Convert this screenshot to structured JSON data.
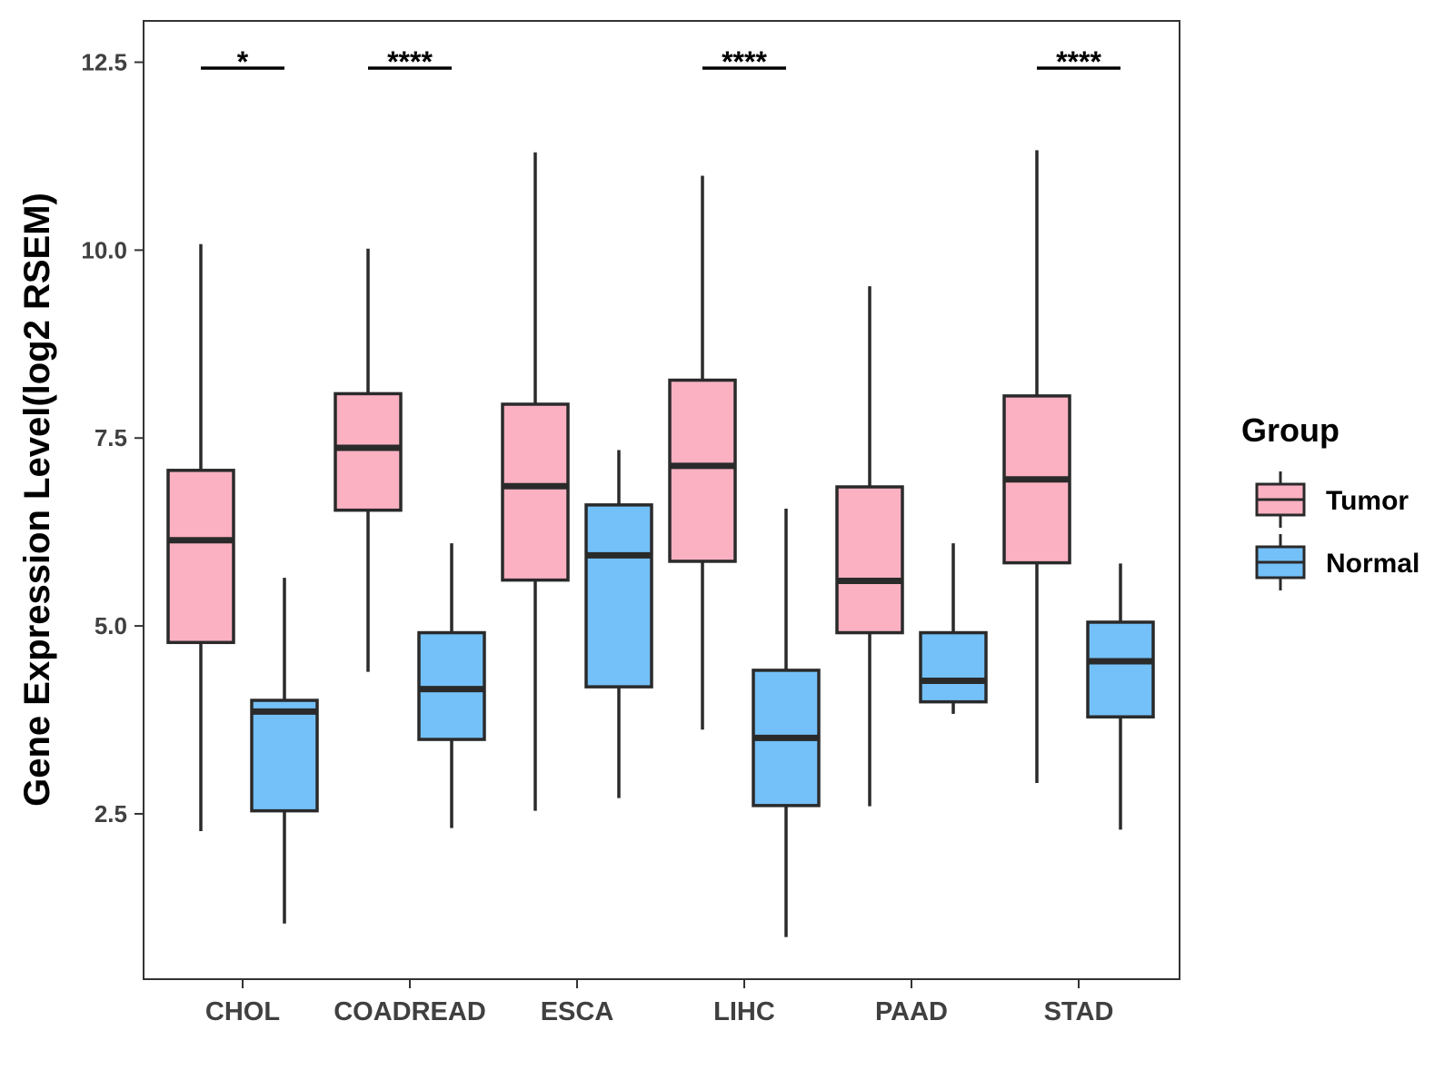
{
  "chart_data": {
    "type": "boxplot",
    "title": "",
    "xlabel": "",
    "ylabel": "Gene Expression Level(log2 RSEM)",
    "ylim": [
      0.3,
      13.05
    ],
    "y_ticks": [
      {
        "value": 2.5,
        "label": "2.5"
      },
      {
        "value": 5.0,
        "label": "5.0"
      },
      {
        "value": 7.5,
        "label": "7.5"
      },
      {
        "value": 10.0,
        "label": "10.0"
      },
      {
        "value": 12.5,
        "label": "12.5"
      }
    ],
    "categories": [
      "CHOL",
      "COADREAD",
      "ESCA",
      "LIHC",
      "PAAD",
      "STAD"
    ],
    "legend": {
      "title": "Group",
      "position": "right",
      "entries": [
        {
          "name": "Tumor",
          "color": "#FBB1C2"
        },
        {
          "name": "Normal",
          "color": "#74C0F8"
        }
      ]
    },
    "series": [
      {
        "name": "Tumor",
        "color": "#FBB1C2",
        "boxes": [
          {
            "category": "CHOL",
            "min": 2.27,
            "q1": 4.78,
            "median": 6.14,
            "q3": 7.07,
            "max": 10.08
          },
          {
            "category": "COADREAD",
            "min": 4.39,
            "q1": 6.54,
            "median": 7.37,
            "q3": 8.09,
            "max": 10.02
          },
          {
            "category": "ESCA",
            "min": 2.54,
            "q1": 5.61,
            "median": 6.86,
            "q3": 7.95,
            "max": 11.3
          },
          {
            "category": "LIHC",
            "min": 3.62,
            "q1": 5.86,
            "median": 7.13,
            "q3": 8.27,
            "max": 10.99
          },
          {
            "category": "PAAD",
            "min": 2.6,
            "q1": 4.91,
            "median": 5.6,
            "q3": 6.85,
            "max": 9.52
          },
          {
            "category": "STAD",
            "min": 2.91,
            "q1": 5.84,
            "median": 6.95,
            "q3": 8.06,
            "max": 11.33
          }
        ]
      },
      {
        "name": "Normal",
        "color": "#74C0F8",
        "boxes": [
          {
            "category": "CHOL",
            "min": 1.04,
            "q1": 2.54,
            "median": 3.86,
            "q3": 4.01,
            "max": 5.64
          },
          {
            "category": "COADREAD",
            "min": 2.31,
            "q1": 3.49,
            "median": 4.16,
            "q3": 4.91,
            "max": 6.1
          },
          {
            "category": "ESCA",
            "min": 2.71,
            "q1": 4.19,
            "median": 5.94,
            "q3": 6.61,
            "max": 7.34
          },
          {
            "category": "LIHC",
            "min": 0.86,
            "q1": 2.61,
            "median": 3.51,
            "q3": 4.41,
            "max": 6.56
          },
          {
            "category": "PAAD",
            "min": 3.83,
            "q1": 3.99,
            "median": 4.27,
            "q3": 4.91,
            "max": 6.1
          },
          {
            "category": "STAD",
            "min": 2.29,
            "q1": 3.79,
            "median": 4.53,
            "q3": 5.05,
            "max": 5.83
          }
        ]
      }
    ],
    "significance": [
      {
        "category": "CHOL",
        "label": "*"
      },
      {
        "category": "COADREAD",
        "label": "****"
      },
      {
        "category": "LIHC",
        "label": "****"
      },
      {
        "category": "STAD",
        "label": "****"
      }
    ],
    "grid": false
  }
}
